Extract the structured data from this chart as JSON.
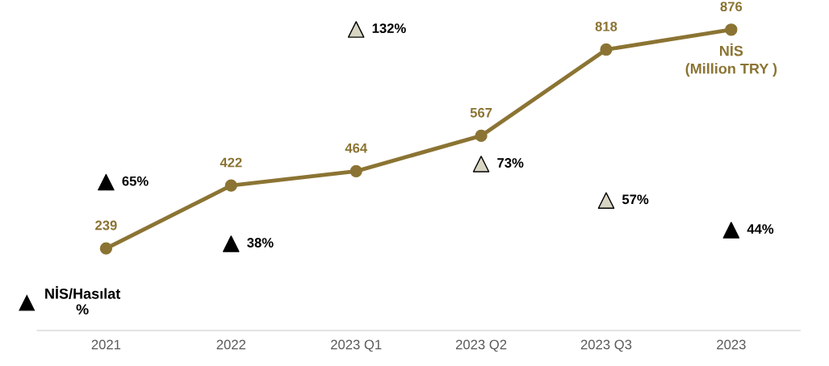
{
  "chart_data": {
    "type": "line",
    "categories": [
      "2021",
      "2022",
      "2023 Q1",
      "2023 Q2",
      "2023 Q3",
      "2023"
    ],
    "series": [
      {
        "name": "NİS\n(Million TRY )",
        "color": "#8b7433",
        "values": [
          239,
          422,
          464,
          567,
          818,
          876
        ],
        "marker": "circle"
      },
      {
        "name": "NİS/Hasılat\n%",
        "type": "scatter",
        "axis": "y2",
        "marker": "triangle",
        "color": "#000000",
        "colors": [
          "#000000",
          "#000000",
          "#d9d5c3",
          "#d9d5c3",
          "#d9d5c3",
          "#000000"
        ],
        "values": [
          65,
          38,
          132,
          73,
          57,
          44
        ],
        "value_labels": [
          "65%",
          "38%",
          "132%",
          "73%",
          "57%",
          "44%"
        ]
      }
    ],
    "data_labels": true,
    "grid": false,
    "legend": "bottom left",
    "tick_labels": "x"
  }
}
